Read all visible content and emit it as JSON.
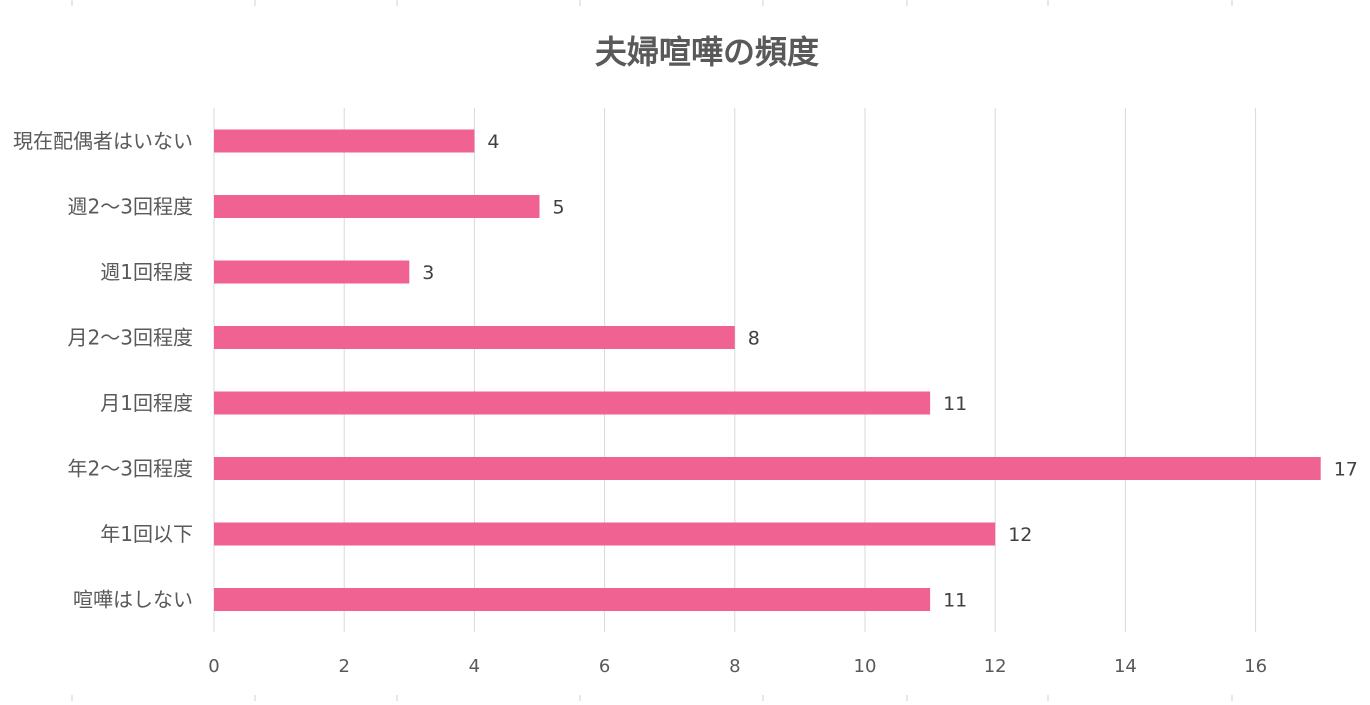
{
  "chart_data": {
    "type": "bar",
    "orientation": "horizontal",
    "title": "夫婦喧嘩の頻度",
    "xlabel": "",
    "ylabel": "",
    "categories": [
      "現在配偶者はいない",
      "週2〜3回程度",
      "週1回程度",
      "月2〜3回程度",
      "月1回程度",
      "年2〜3回程度",
      "年1回以下",
      "喧嘩はしない"
    ],
    "values": [
      4,
      5,
      3,
      8,
      11,
      17,
      12,
      11
    ],
    "xlim": [
      0,
      18
    ],
    "xticks": [
      0,
      2,
      4,
      6,
      8,
      10,
      12,
      14,
      16
    ],
    "grid": true,
    "legend": "none",
    "data_labels": true,
    "bar_color": "#f06292"
  }
}
